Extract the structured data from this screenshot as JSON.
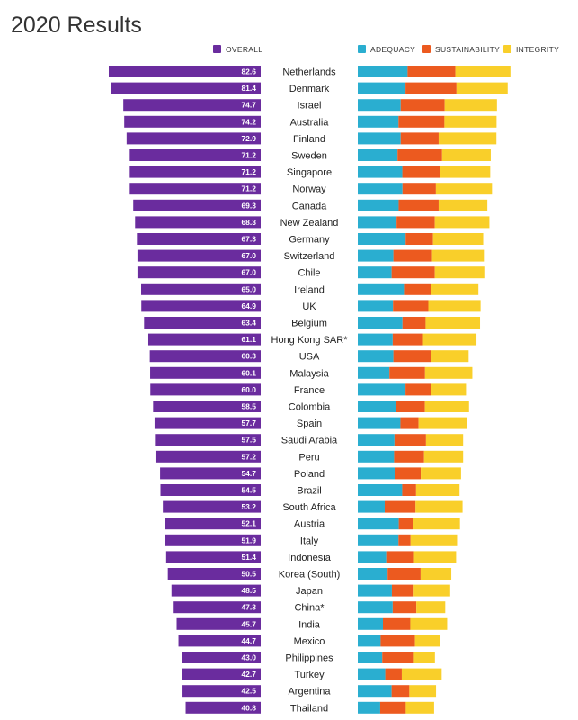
{
  "page": {
    "title": "2020 Results"
  },
  "colors": {
    "overall": "#6a2c9e",
    "adequacy": "#2aaed0",
    "sustainability": "#ec5a1f",
    "integrity": "#f9cf2a"
  },
  "chart_data": [
    {
      "type": "bar",
      "orientation": "horizontal",
      "title": "",
      "series": [
        {
          "name": "OVERALL",
          "values": [
            82.6,
            81.4,
            74.7,
            74.2,
            72.9,
            71.2,
            71.2,
            71.2,
            69.3,
            68.3,
            67.3,
            67.0,
            67.0,
            65.0,
            64.9,
            63.4,
            61.1,
            60.3,
            60.1,
            60.0,
            58.5,
            57.7,
            57.5,
            57.2,
            54.7,
            54.5,
            53.2,
            52.1,
            51.9,
            51.4,
            50.5,
            48.5,
            47.3,
            45.7,
            44.7,
            43.0,
            42.7,
            42.5,
            40.8
          ]
        }
      ],
      "data_labels": [
        "82.6",
        "81.4",
        "74.7",
        "74.2",
        "72.9",
        "71.2",
        "71.2",
        "71.2",
        "69.3",
        "68.3",
        "67.3",
        "67.0",
        "67.0",
        "65.0",
        "64.9",
        "63.4",
        "61.1",
        "60.3",
        "60.1",
        "60.0",
        "58.5",
        "57.7",
        "57.5",
        "57.2",
        "54.7",
        "54.5",
        "53.2",
        "52.1",
        "51.9",
        "51.4",
        "50.5",
        "48.5",
        "47.3",
        "45.7",
        "44.7",
        "43.0",
        "42.7",
        "42.5",
        "40.8"
      ],
      "legend": "top-right"
    },
    {
      "type": "bar",
      "orientation": "horizontal",
      "stacked": true,
      "title": "",
      "series": [
        {
          "name": "ADEQUACY",
          "values": [
            36.2,
            34.7,
            31.2,
            29.6,
            31.2,
            28.9,
            32.4,
            32.5,
            29.7,
            28.2,
            34.8,
            25.9,
            24.6,
            33.6,
            25.6,
            32.5,
            25.4,
            25.9,
            23.0,
            34.7,
            28.1,
            31.0,
            26.7,
            26.4,
            26.8,
            32.3,
            19.6,
            29.8,
            29.6,
            20.7,
            21.7,
            24.8,
            25.4,
            18.3,
            16.6,
            17.8,
            20.0,
            24.6,
            16.3
          ]
        },
        {
          "name": "SUSTAINABILITY",
          "values": [
            34.8,
            37.1,
            32.0,
            33.4,
            27.6,
            32.4,
            27.4,
            24.3,
            29.1,
            27.8,
            19.9,
            28.1,
            31.4,
            19.9,
            25.7,
            16.8,
            22.0,
            27.7,
            25.9,
            18.6,
            20.7,
            13.2,
            22.9,
            21.8,
            19.0,
            10.1,
            22.4,
            10.3,
            8.8,
            20.2,
            24.0,
            15.9,
            17.2,
            19.9,
            25.0,
            23.0,
            12.0,
            12.9,
            18.6
          ]
        },
        {
          "name": "INTEGRITY",
          "values": [
            40.0,
            37.2,
            38.0,
            37.9,
            42.0,
            35.4,
            36.5,
            40.8,
            35.4,
            39.7,
            36.5,
            37.7,
            36.0,
            34.2,
            38.0,
            39.6,
            38.9,
            27.0,
            34.4,
            25.4,
            32.1,
            35.1,
            27.0,
            28.4,
            29.3,
            31.6,
            34.2,
            34.2,
            33.8,
            30.6,
            22.3,
            26.5,
            21.0,
            26.8,
            18.2,
            15.3,
            29.0,
            19.4,
            20.6
          ]
        }
      ],
      "legend": "top-right"
    }
  ],
  "categories": [
    "Netherlands",
    "Denmark",
    "Israel",
    "Australia",
    "Finland",
    "Sweden",
    "Singapore",
    "Norway",
    "Canada",
    "New Zealand",
    "Germany",
    "Switzerland",
    "Chile",
    "Ireland",
    "UK",
    "Belgium",
    "Hong Kong SAR*",
    "USA",
    "Malaysia",
    "France",
    "Colombia",
    "Spain",
    "Saudi Arabia",
    "Peru",
    "Poland",
    "Brazil",
    "South Africa",
    "Austria",
    "Italy",
    "Indonesia",
    "Korea (South)",
    "Japan",
    "China*",
    "India",
    "Mexico",
    "Philippines",
    "Turkey",
    "Argentina",
    "Thailand"
  ]
}
